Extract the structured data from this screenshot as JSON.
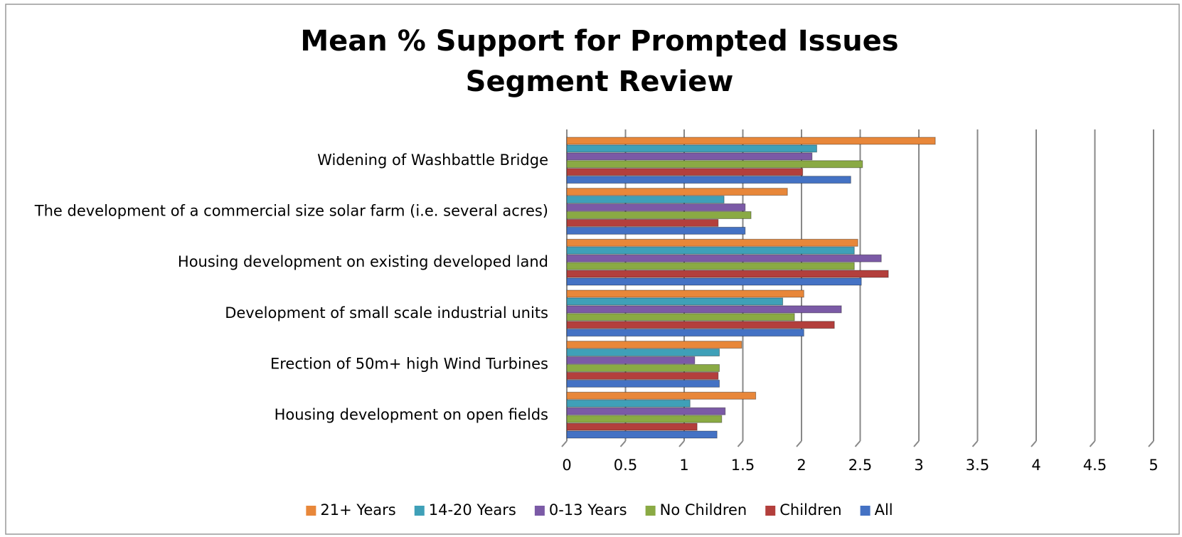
{
  "chart_data": {
    "type": "barh",
    "title": "Mean % Support for Prompted Issues",
    "subtitle": "Segment Review",
    "categories": [
      "Widening of Washbattle Bridge",
      "The development of a commercial size solar farm (i.e. several acres)",
      "Housing development on existing developed land",
      "Development of small scale industrial units",
      "Erection of 50m+ high Wind Turbines",
      "Housing development on open fields"
    ],
    "series": [
      {
        "name": "21+ Years",
        "color": "#e8873a",
        "values": [
          3.14,
          1.88,
          2.48,
          2.02,
          1.49,
          1.61
        ]
      },
      {
        "name": "14-20 Years",
        "color": "#3fa0b8",
        "values": [
          2.13,
          1.34,
          2.45,
          1.84,
          1.3,
          1.05
        ]
      },
      {
        "name": "0-13 Years",
        "color": "#7b5aa6",
        "values": [
          2.09,
          1.52,
          2.68,
          2.34,
          1.09,
          1.35
        ]
      },
      {
        "name": "No Children",
        "color": "#8aaa44",
        "values": [
          2.52,
          1.57,
          2.45,
          1.94,
          1.3,
          1.32
        ]
      },
      {
        "name": "Children",
        "color": "#b33f3c",
        "values": [
          2.01,
          1.29,
          2.74,
          2.28,
          1.29,
          1.11
        ]
      },
      {
        "name": "All",
        "color": "#4472c4",
        "values": [
          2.42,
          1.52,
          2.51,
          2.02,
          1.3,
          1.28
        ]
      }
    ],
    "xlim": [
      0,
      5
    ],
    "xticks": [
      0,
      0.5,
      1,
      1.5,
      2,
      2.5,
      3,
      3.5,
      4,
      4.5,
      5
    ],
    "grid": true,
    "legend": "bottom"
  }
}
